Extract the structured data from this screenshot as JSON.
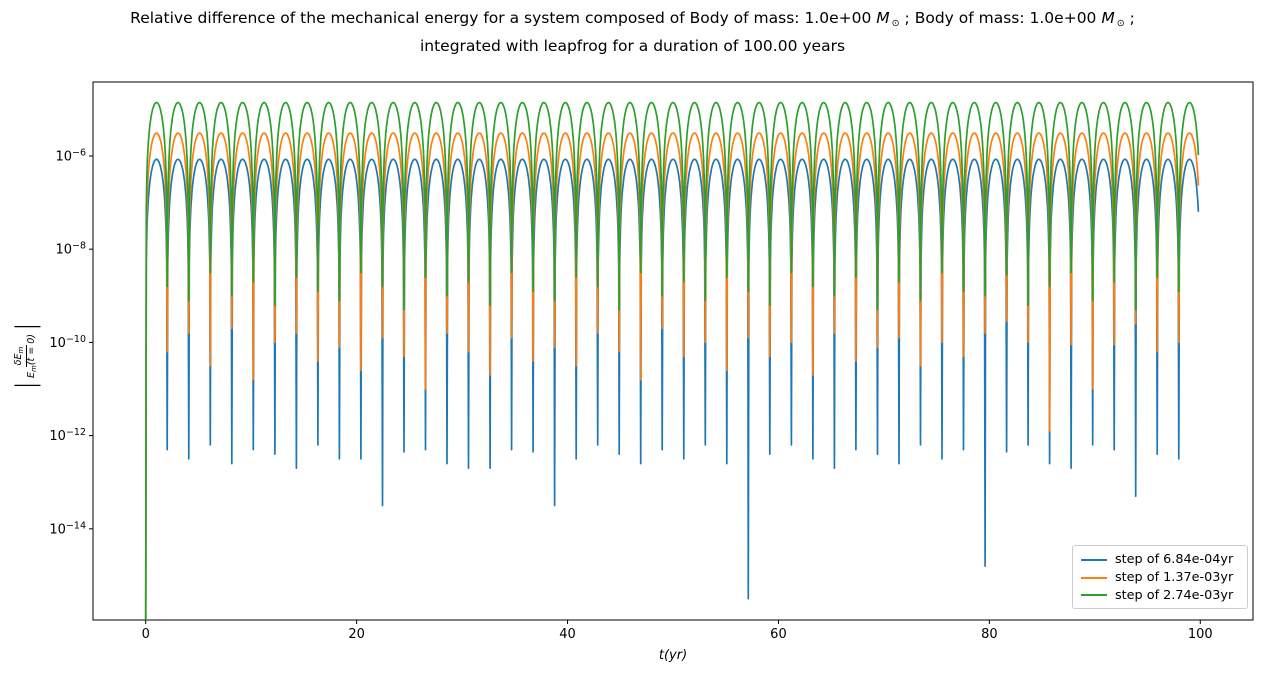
{
  "chart_data": {
    "type": "line",
    "title": {
      "line1_pre": "Relative difference of the mechanical energy for a system composed of Body of mass: 1.0e+00 ",
      "mass_symbol": "M",
      "mass_sub": "⊙",
      "line1_mid": " ; Body of mass: 1.0e+00 ",
      "line1_post": " ;",
      "line2": "integrated with leapfrog for a duration of 100.00 years"
    },
    "x_axis": {
      "label": "t(yr)",
      "range": [
        -5,
        105
      ],
      "tick_values": [
        0,
        20,
        40,
        60,
        80,
        100
      ],
      "tick_labels": [
        "0",
        "20",
        "40",
        "60",
        "80",
        "100"
      ]
    },
    "y_axis": {
      "scale": "log",
      "label": {
        "num_base": "δE",
        "num_sub": "m",
        "den_base": "E",
        "den_sub": "m",
        "den_rest": "(t = 0)"
      },
      "range_log10": [
        -15.96,
        -4.41
      ],
      "ticks": [
        {
          "exp": -6,
          "base": "10",
          "sup": "−6"
        },
        {
          "exp": -8,
          "base": "10",
          "sup": "−8"
        },
        {
          "exp": -10,
          "base": "10",
          "sup": "−10"
        },
        {
          "exp": -12,
          "base": "10",
          "sup": "−12"
        },
        {
          "exp": -14,
          "base": "10",
          "sup": "−14"
        }
      ],
      "grid": false
    },
    "arch_period_years": 2.0408163,
    "arch_shape": "peak*sin^2(pi*phase) on log scale, clamped at cusp minima",
    "t_end_years": 99.82,
    "legend_position": "lower right",
    "series": [
      {
        "name": "step of 6.84e-04yr",
        "color": "#1f77b4",
        "peak_value": 8.5e-07,
        "cusp_minima_log10": [
          -16.5,
          -12.3,
          -12.5,
          -12.2,
          -12.6,
          -12.3,
          -12.4,
          -12.7,
          -12.2,
          -12.5,
          -12.5,
          -13.5,
          -12.35,
          -12.3,
          -12.6,
          -12.7,
          -12.7,
          -12.3,
          -12.35,
          -13.5,
          -12.5,
          -12.2,
          -12.4,
          -12.6,
          -12.3,
          -12.5,
          -12.2,
          -12.6,
          -15.5,
          -12.4,
          -12.2,
          -12.5,
          -12.7,
          -12.3,
          -12.4,
          -12.6,
          -12.2,
          -12.5,
          -12.3,
          -14.8,
          -12.35,
          -12.2,
          -12.6,
          -12.7,
          -12.2,
          -12.3,
          -13.3,
          -12.4,
          -12.5,
          -12.4
        ]
      },
      {
        "name": "step of 1.37e-03yr",
        "color": "#ff7f0e",
        "peak_value": 3.1e-06,
        "cusp_minima_log10": [
          -16.5,
          -10.2,
          -9.8,
          -10.5,
          -9.7,
          -10.8,
          -10.0,
          -9.8,
          -10.4,
          -10.1,
          -10.6,
          -9.9,
          -10.3,
          -11.0,
          -9.8,
          -10.2,
          -10.7,
          -9.9,
          -10.4,
          -10.1,
          -10.5,
          -9.8,
          -10.2,
          -10.8,
          -9.7,
          -10.3,
          -10.0,
          -10.6,
          -9.9,
          -10.3,
          -10.0,
          -10.7,
          -9.8,
          -10.4,
          -10.1,
          -9.9,
          -10.5,
          -10.0,
          -10.3,
          -9.8,
          -9.55,
          -10.0,
          -11.9,
          -10.05,
          -11.0,
          -10.05,
          -9.6,
          -10.2,
          -10.0,
          -10.3
        ]
      },
      {
        "name": "step of 2.74e-03yr",
        "color": "#2ca02c",
        "peak_value": 1.4e-05,
        "cusp_minima_log10": [
          -16.5,
          -8.8,
          -9.1,
          -8.5,
          -9.0,
          -8.7,
          -9.2,
          -8.6,
          -8.9,
          -9.1,
          -8.5,
          -8.8,
          -9.3,
          -8.6,
          -9.0,
          -8.7,
          -9.2,
          -8.5,
          -8.9,
          -9.1,
          -8.6,
          -8.8,
          -9.3,
          -8.5,
          -9.0,
          -8.7,
          -9.1,
          -8.6,
          -8.9,
          -9.2,
          -8.5,
          -8.8,
          -9.0,
          -8.6,
          -9.3,
          -8.7,
          -9.1,
          -8.5,
          -8.9,
          -9.0,
          -8.55,
          -9.2,
          -8.8,
          -8.5,
          -9.1,
          -8.7,
          -9.3,
          -8.6,
          -8.9,
          -8.8
        ]
      }
    ]
  }
}
